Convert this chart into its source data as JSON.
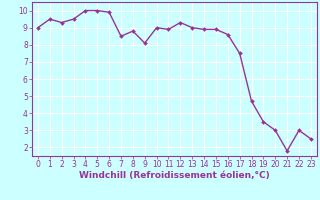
{
  "x": [
    0,
    1,
    2,
    3,
    4,
    5,
    6,
    7,
    8,
    9,
    10,
    11,
    12,
    13,
    14,
    15,
    16,
    17,
    18,
    19,
    20,
    21,
    22,
    23
  ],
  "y": [
    9.0,
    9.5,
    9.3,
    9.5,
    10.0,
    10.0,
    9.9,
    8.5,
    8.8,
    8.1,
    9.0,
    8.9,
    9.3,
    9.0,
    8.9,
    8.9,
    8.6,
    7.5,
    4.7,
    3.5,
    3.0,
    1.8,
    3.0,
    2.5
  ],
  "line_color": "#993399",
  "marker_color": "#993399",
  "bg_color": "#ccffff",
  "grid_color": "#ffffff",
  "xlabel": "Windchill (Refroidissement éolien,°C)",
  "xlim": [
    -0.5,
    23.5
  ],
  "ylim": [
    1.5,
    10.5
  ],
  "yticks": [
    2,
    3,
    4,
    5,
    6,
    7,
    8,
    9,
    10
  ],
  "xticks": [
    0,
    1,
    2,
    3,
    4,
    5,
    6,
    7,
    8,
    9,
    10,
    11,
    12,
    13,
    14,
    15,
    16,
    17,
    18,
    19,
    20,
    21,
    22,
    23
  ],
  "tick_labelsize": 5.5,
  "xlabel_fontsize": 6.5,
  "line_width": 1.0,
  "marker_size": 2.0
}
